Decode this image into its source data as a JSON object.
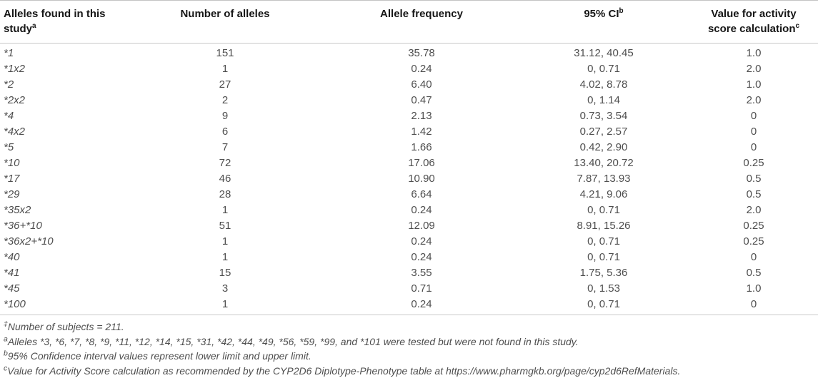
{
  "colors": {
    "background": "#ffffff",
    "rule": "#c8c8c8",
    "header_text": "#161616",
    "body_text": "#4e4e4e"
  },
  "table": {
    "headers": [
      {
        "line1": "Alleles found in this",
        "line2": "study",
        "sup": "a"
      },
      {
        "line1": "Number of alleles",
        "line2": "",
        "sup": ""
      },
      {
        "line1": "Allele frequency",
        "line2": "",
        "sup": ""
      },
      {
        "line1": "95% CI",
        "line2": "",
        "sup": "b"
      },
      {
        "line1": "Value for activity",
        "line2": "score calculation",
        "sup": "c"
      }
    ],
    "rows": [
      [
        "*1",
        "151",
        "35.78",
        "31.12, 40.45",
        "1.0"
      ],
      [
        "*1x2",
        "1",
        "0.24",
        "0, 0.71",
        "2.0"
      ],
      [
        "*2",
        "27",
        "6.40",
        "4.02, 8.78",
        "1.0"
      ],
      [
        "*2x2",
        "2",
        "0.47",
        "0, 1.14",
        "2.0"
      ],
      [
        "*4",
        "9",
        "2.13",
        "0.73, 3.54",
        "0"
      ],
      [
        "*4x2",
        "6",
        "1.42",
        "0.27, 2.57",
        "0"
      ],
      [
        "*5",
        "7",
        "1.66",
        "0.42, 2.90",
        "0"
      ],
      [
        "*10",
        "72",
        "17.06",
        "13.40, 20.72",
        "0.25"
      ],
      [
        "*17",
        "46",
        "10.90",
        "7.87, 13.93",
        "0.5"
      ],
      [
        "*29",
        "28",
        "6.64",
        "4.21, 9.06",
        "0.5"
      ],
      [
        "*35x2",
        "1",
        "0.24",
        "0, 0.71",
        "2.0"
      ],
      [
        "*36+*10",
        "51",
        "12.09",
        "8.91, 15.26",
        "0.25"
      ],
      [
        "*36x2+*10",
        "1",
        "0.24",
        "0, 0.71",
        "0.25"
      ],
      [
        "*40",
        "1",
        "0.24",
        "0, 0.71",
        "0"
      ],
      [
        "*41",
        "15",
        "3.55",
        "1.75, 5.36",
        "0.5"
      ],
      [
        "*45",
        "3",
        "0.71",
        "0, 1.53",
        "1.0"
      ],
      [
        "*100",
        "1",
        "0.24",
        "0, 0.71",
        "0"
      ]
    ]
  },
  "footnotes": [
    {
      "marker": "‡",
      "text": "Number of subjects = 211."
    },
    {
      "marker": "a",
      "text": "Alleles *3, *6, *7, *8, *9, *11, *12, *14, *15, *31, *42, *44, *49, *56, *59, *99, and *101 were tested but were not found in this study."
    },
    {
      "marker": "b",
      "text": "95% Confidence interval values represent lower limit and upper limit."
    },
    {
      "marker": "c",
      "text": "Value for Activity Score calculation as recommended by the CYP2D6 Diplotype-Phenotype table at https://www.pharmgkb.org/page/cyp2d6RefMaterials."
    }
  ]
}
